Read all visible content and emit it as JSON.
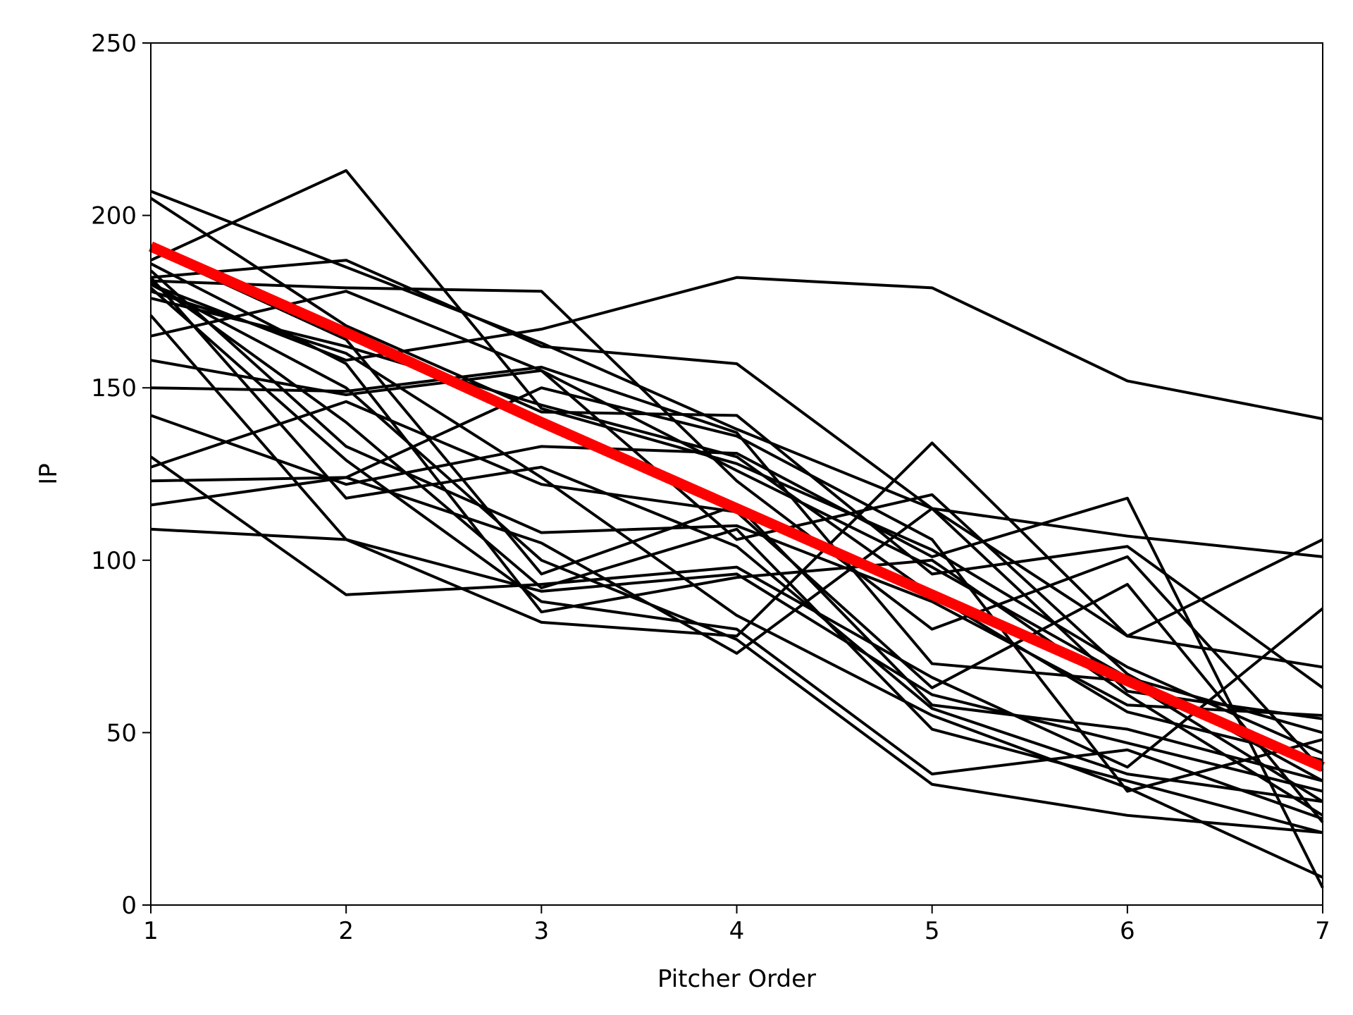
{
  "chart_data": {
    "type": "line",
    "title": "",
    "xlabel": "Pitcher Order",
    "ylabel": "IP",
    "xlim": [
      1,
      7
    ],
    "ylim": [
      0,
      250
    ],
    "xticks": [
      1,
      2,
      3,
      4,
      5,
      6,
      7
    ],
    "yticks": [
      0,
      50,
      100,
      150,
      200,
      250
    ],
    "grid": false,
    "legend": "none",
    "x": [
      1,
      2,
      3,
      4,
      5,
      6,
      7
    ],
    "series_color": "#000000",
    "trend_color": "#ff0000",
    "series": [
      {
        "values": [
          207,
          185,
          163,
          138,
          115,
          78,
          69
        ]
      },
      {
        "values": [
          205,
          168,
          143,
          142,
          96,
          104,
          63
        ]
      },
      {
        "values": [
          187,
          213,
          144,
          128,
          103,
          69,
          44
        ]
      },
      {
        "values": [
          182,
          187,
          162,
          157,
          115,
          62,
          54
        ]
      },
      {
        "values": [
          181,
          179,
          178,
          123,
          80,
          101,
          39
        ]
      },
      {
        "values": [
          176,
          162,
          145,
          130,
          90,
          56,
          42
        ]
      },
      {
        "values": [
          165,
          178,
          155,
          126,
          98,
          66,
          50
        ]
      },
      {
        "values": [
          180,
          158,
          167,
          182,
          179,
          152,
          141
        ]
      },
      {
        "values": [
          158,
          148,
          155,
          106,
          119,
          67,
          36
        ]
      },
      {
        "values": [
          150,
          149,
          156,
          137,
          70,
          65,
          30
        ]
      },
      {
        "values": [
          142,
          122,
          133,
          131,
          101,
          118,
          5
        ]
      },
      {
        "values": [
          127,
          146,
          122,
          114,
          63,
          93,
          24
        ]
      },
      {
        "values": [
          123,
          124,
          105,
          73,
          115,
          107,
          101
        ]
      },
      {
        "values": [
          116,
          124,
          150,
          136,
          106,
          33,
          48
        ]
      },
      {
        "values": [
          109,
          106,
          82,
          78,
          134,
          78,
          106
        ]
      },
      {
        "values": [
          130,
          90,
          93,
          98,
          66,
          40,
          86
        ]
      },
      {
        "values": [
          184,
          133,
          108,
          110,
          88,
          58,
          55
        ]
      },
      {
        "values": [
          179,
          129,
          88,
          80,
          38,
          45,
          25
        ]
      },
      {
        "values": [
          182,
          118,
          127,
          104,
          57,
          38,
          30
        ]
      },
      {
        "values": [
          190,
          164,
          96,
          116,
          58,
          51,
          36
        ]
      },
      {
        "values": [
          181,
          140,
          92,
          109,
          51,
          36,
          21
        ]
      },
      {
        "values": [
          178,
          160,
          124,
          84,
          55,
          34,
          8
        ]
      },
      {
        "values": [
          180,
          150,
          100,
          77,
          35,
          26,
          21
        ]
      },
      {
        "values": [
          171,
          106,
          91,
          96,
          61,
          47,
          33
        ]
      },
      {
        "values": [
          186,
          157,
          85,
          95,
          100,
          61,
          26
        ]
      }
    ],
    "trend": {
      "values": [
        191,
        166,
        140,
        115,
        90,
        65,
        40
      ]
    }
  }
}
